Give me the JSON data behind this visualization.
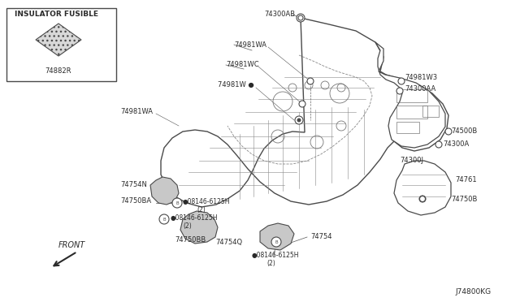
{
  "diagram_id": "J74800KG",
  "bg_color": "#ffffff",
  "line_color": "#4a4a4a",
  "text_color": "#2a2a2a",
  "inset_label": "INSULATOR FUSIBLE",
  "inset_part": "74882R",
  "figsize": [
    6.4,
    3.72
  ],
  "dpi": 100
}
